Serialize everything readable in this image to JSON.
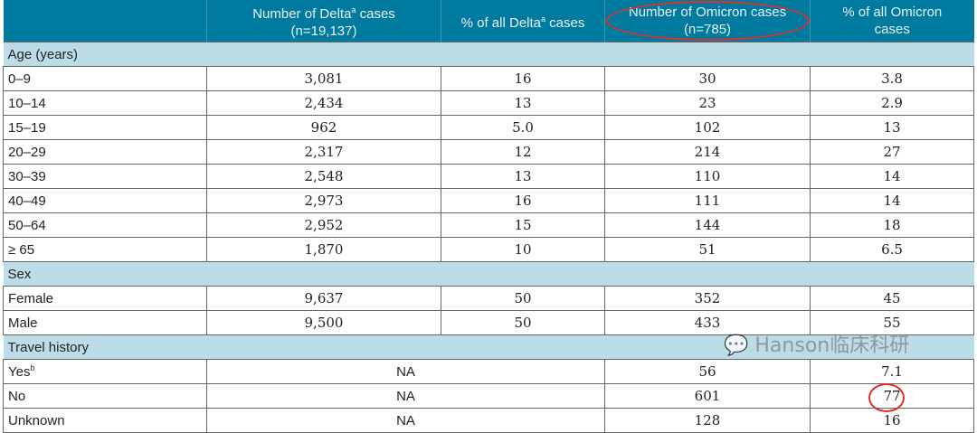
{
  "headers": [
    "",
    "Number of Delta",
    "(n=19,137)",
    "% of all Delta",
    " cases",
    "Number of Omicron cases",
    "(n=785)",
    "% of all Omicron",
    "cases"
  ],
  "header_suffix": {
    "delta_sup": "a",
    "delta_cases": " cases"
  },
  "sections": {
    "age": "Age (years)",
    "sex": "Sex",
    "travel": "Travel history"
  },
  "age_rows": [
    [
      "0–9",
      "3,081",
      "16",
      "30",
      "3.8"
    ],
    [
      "10–14",
      "2,434",
      "13",
      "23",
      "2.9"
    ],
    [
      "15–19",
      "962",
      "5.0",
      "102",
      "13"
    ],
    [
      "20–29",
      "2,317",
      "12",
      "214",
      "27"
    ],
    [
      "30–39",
      "2,548",
      "13",
      "110",
      "14"
    ],
    [
      "40–49",
      "2,973",
      "16",
      "111",
      "14"
    ],
    [
      "50–64",
      "2,952",
      "15",
      "144",
      "18"
    ],
    [
      "≥ 65",
      "1,870",
      "10",
      "51",
      "6.5"
    ]
  ],
  "sex_rows": [
    [
      "Female",
      "9,637",
      "50",
      "352",
      "45"
    ],
    [
      "Male",
      "9,500",
      "50",
      "433",
      "55"
    ]
  ],
  "travel_rows": [
    [
      "Yes",
      "NA",
      "56",
      "7.1"
    ],
    [
      "No",
      "NA",
      "601",
      "77"
    ],
    [
      "Unknown",
      "NA",
      "128",
      "16"
    ]
  ],
  "yes_sup": "b",
  "watermark": "Hanson临床科研"
}
